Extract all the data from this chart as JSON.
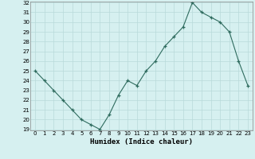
{
  "x": [
    0,
    1,
    2,
    3,
    4,
    5,
    6,
    7,
    8,
    9,
    10,
    11,
    12,
    13,
    14,
    15,
    16,
    17,
    18,
    19,
    20,
    21,
    22,
    23
  ],
  "y": [
    25,
    24,
    23,
    22,
    21,
    20,
    19.5,
    19,
    20.5,
    22.5,
    24,
    23.5,
    25,
    26,
    27.5,
    28.5,
    29.5,
    32,
    31,
    30.5,
    30,
    29,
    26,
    23.5
  ],
  "xlabel": "Humidex (Indice chaleur)",
  "ylim": [
    19,
    32
  ],
  "xlim": [
    -0.5,
    23.5
  ],
  "yticks": [
    19,
    20,
    21,
    22,
    23,
    24,
    25,
    26,
    27,
    28,
    29,
    30,
    31,
    32
  ],
  "xticks": [
    0,
    1,
    2,
    3,
    4,
    5,
    6,
    7,
    8,
    9,
    10,
    11,
    12,
    13,
    14,
    15,
    16,
    17,
    18,
    19,
    20,
    21,
    22,
    23
  ],
  "line_color": "#2e6b5e",
  "marker": "+",
  "bg_color": "#d6f0f0",
  "grid_color": "#b8dada",
  "label_fontsize": 6.5,
  "tick_fontsize": 5.0
}
